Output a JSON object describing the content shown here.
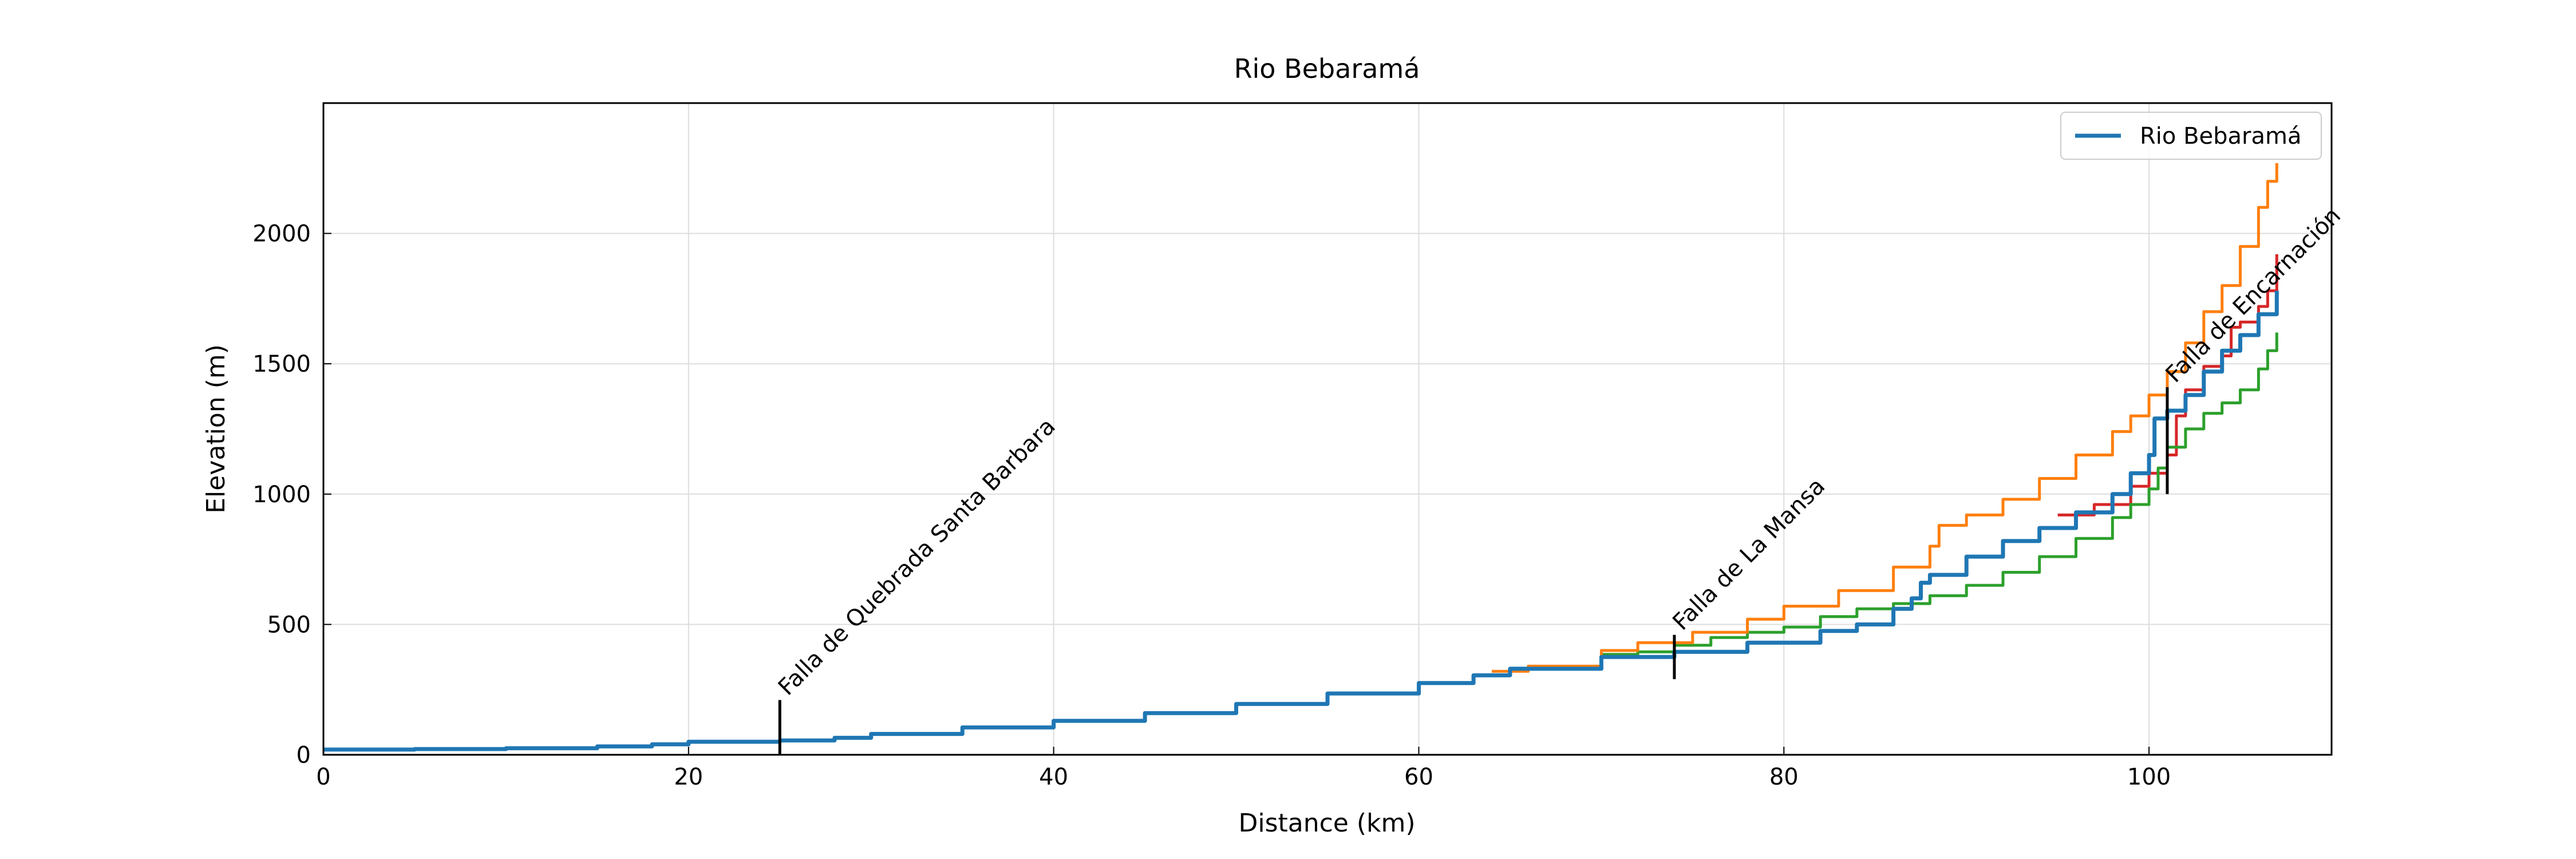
{
  "chart_data": {
    "type": "line",
    "title": "Rio Bebaramá",
    "xlabel": "Distance (km)",
    "ylabel": "Elevation (m)",
    "xlim": [
      0,
      110
    ],
    "ylim": [
      0,
      2500
    ],
    "xticks": [
      0,
      20,
      40,
      60,
      80,
      100
    ],
    "yticks": [
      0,
      500,
      1000,
      1500,
      2000
    ],
    "grid": true,
    "legend_position": "top-right",
    "series": [
      {
        "name": "Rio Bebaramá",
        "color": "#1f77b4",
        "points": [
          [
            0,
            20
          ],
          [
            5,
            22
          ],
          [
            10,
            25
          ],
          [
            15,
            32
          ],
          [
            18,
            40
          ],
          [
            20,
            50
          ],
          [
            25,
            55
          ],
          [
            28,
            65
          ],
          [
            30,
            80
          ],
          [
            35,
            105
          ],
          [
            40,
            130
          ],
          [
            45,
            160
          ],
          [
            50,
            195
          ],
          [
            55,
            235
          ],
          [
            60,
            275
          ],
          [
            63,
            305
          ],
          [
            65,
            330
          ],
          [
            70,
            375
          ],
          [
            74,
            395
          ],
          [
            78,
            430
          ],
          [
            82,
            475
          ],
          [
            84,
            500
          ],
          [
            86,
            560
          ],
          [
            87,
            600
          ],
          [
            87.5,
            660
          ],
          [
            88,
            690
          ],
          [
            90,
            760
          ],
          [
            92,
            820
          ],
          [
            94,
            870
          ],
          [
            96,
            930
          ],
          [
            98,
            1000
          ],
          [
            99,
            1080
          ],
          [
            100,
            1150
          ],
          [
            100.3,
            1290
          ],
          [
            101,
            1320
          ],
          [
            102,
            1380
          ],
          [
            103,
            1470
          ],
          [
            104,
            1550
          ],
          [
            105,
            1610
          ],
          [
            106,
            1690
          ],
          [
            107,
            1780
          ]
        ]
      },
      {
        "color": "#ff7f0e",
        "points": [
          [
            64,
            320
          ],
          [
            66,
            340
          ],
          [
            70,
            400
          ],
          [
            72,
            430
          ],
          [
            75,
            470
          ],
          [
            78,
            520
          ],
          [
            80,
            570
          ],
          [
            83,
            630
          ],
          [
            86,
            720
          ],
          [
            88,
            800
          ],
          [
            88.5,
            880
          ],
          [
            90,
            920
          ],
          [
            92,
            980
          ],
          [
            94,
            1060
          ],
          [
            96,
            1150
          ],
          [
            98,
            1240
          ],
          [
            99,
            1300
          ],
          [
            100,
            1380
          ],
          [
            101,
            1470
          ],
          [
            102,
            1580
          ],
          [
            103,
            1700
          ],
          [
            104,
            1800
          ],
          [
            105,
            1950
          ],
          [
            106,
            2100
          ],
          [
            106.5,
            2200
          ],
          [
            107,
            2270
          ]
        ]
      },
      {
        "color": "#2ca02c",
        "points": [
          [
            70,
            385
          ],
          [
            72,
            395
          ],
          [
            74,
            420
          ],
          [
            76,
            450
          ],
          [
            78,
            470
          ],
          [
            80,
            490
          ],
          [
            82,
            530
          ],
          [
            84,
            560
          ],
          [
            86,
            580
          ],
          [
            88,
            610
          ],
          [
            90,
            650
          ],
          [
            92,
            700
          ],
          [
            94,
            760
          ],
          [
            96,
            830
          ],
          [
            98,
            910
          ],
          [
            99,
            960
          ],
          [
            100,
            1020
          ],
          [
            100.5,
            1100
          ],
          [
            101,
            1180
          ],
          [
            102,
            1250
          ],
          [
            103,
            1310
          ],
          [
            104,
            1350
          ],
          [
            105,
            1400
          ],
          [
            106,
            1480
          ],
          [
            106.5,
            1550
          ],
          [
            107,
            1620
          ]
        ]
      },
      {
        "color": "#d62728",
        "points": [
          [
            95,
            920
          ],
          [
            97,
            960
          ],
          [
            99,
            1030
          ],
          [
            100,
            1080
          ],
          [
            101,
            1150
          ],
          [
            101.5,
            1300
          ],
          [
            102,
            1400
          ],
          [
            103,
            1490
          ],
          [
            104,
            1530
          ],
          [
            104.5,
            1640
          ],
          [
            105,
            1660
          ],
          [
            106,
            1720
          ],
          [
            106.5,
            1780
          ],
          [
            107,
            1920
          ]
        ]
      }
    ],
    "annotations": [
      {
        "text": "Falla de Quebrada Santa Barbara",
        "x": 25,
        "y_from": 0,
        "y_to": 210
      },
      {
        "text": "Falla de La Mansa",
        "x": 74,
        "y_from": 290,
        "y_to": 460
      },
      {
        "text": "Falla de Encarnación",
        "x": 101,
        "y_from": 1000,
        "y_to": 1410
      }
    ]
  }
}
